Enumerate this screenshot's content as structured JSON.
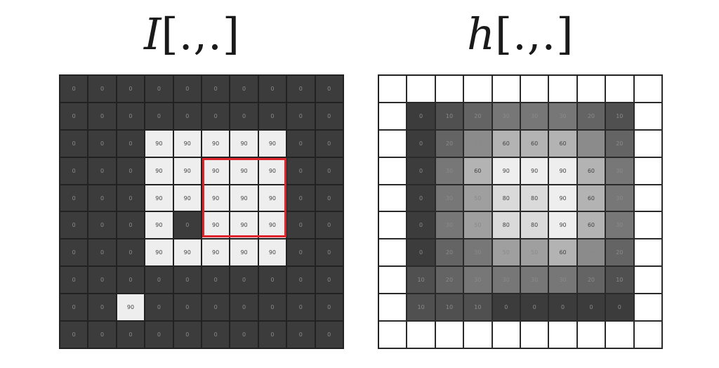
{
  "title_left": {
    "var": "I",
    "brackets": "[.,.]"
  },
  "title_right": {
    "var": "h",
    "brackets": "[.,.]"
  },
  "colors": {
    "dark": "#3c3c3c",
    "white": "#f4f4f4",
    "highlight": "#e0242c"
  },
  "image_I": [
    [
      "0",
      "0",
      "0",
      "0",
      "0",
      "0",
      "0",
      "0",
      "0",
      "0"
    ],
    [
      "0",
      "0",
      "0",
      "0",
      "0",
      "0",
      "0",
      "0",
      "0",
      "0"
    ],
    [
      "0",
      "0",
      "0",
      "90",
      "90",
      "90",
      "90",
      "90",
      "0",
      "0"
    ],
    [
      "0",
      "0",
      "0",
      "90",
      "90",
      "90",
      "90",
      "90",
      "0",
      "0"
    ],
    [
      "0",
      "0",
      "0",
      "90",
      "90",
      "90",
      "90",
      "90",
      "0",
      "0"
    ],
    [
      "0",
      "0",
      "0",
      "90",
      "0",
      "90",
      "90",
      "90",
      "0",
      "0"
    ],
    [
      "0",
      "0",
      "0",
      "90",
      "90",
      "90",
      "90",
      "90",
      "0",
      "0"
    ],
    [
      "0",
      "0",
      "0",
      "0",
      "0",
      "0",
      "0",
      "0",
      "0",
      "0"
    ],
    [
      "0",
      "0",
      "90",
      "0",
      "0",
      "0",
      "0",
      "0",
      "0",
      "0"
    ],
    [
      "0",
      "0",
      "0",
      "0",
      "0",
      "0",
      "0",
      "0",
      "0",
      "0"
    ]
  ],
  "image_h": [
    [
      "",
      "",
      "",
      "",
      "",
      "",
      "",
      "",
      "",
      ""
    ],
    [
      "",
      "0",
      "10",
      "20",
      "30",
      "30",
      "30",
      "20",
      "10",
      ""
    ],
    [
      "",
      "0",
      "20",
      "40",
      "60",
      "60",
      "60",
      "40",
      "20",
      ""
    ],
    [
      "",
      "0",
      "30",
      "60",
      "90",
      "90",
      "90",
      "60",
      "30",
      ""
    ],
    [
      "",
      "0",
      "30",
      "50",
      "80",
      "80",
      "90",
      "60",
      "30",
      ""
    ],
    [
      "",
      "0",
      "30",
      "50",
      "80",
      "80",
      "90",
      "60",
      "30",
      ""
    ],
    [
      "",
      "0",
      "20",
      "30",
      "50",
      "50",
      "60",
      "40",
      "20",
      ""
    ],
    [
      "",
      "10",
      "20",
      "30",
      "30",
      "30",
      "30",
      "20",
      "10",
      ""
    ],
    [
      "",
      "10",
      "10",
      "10",
      "0",
      "0",
      "0",
      "0",
      "0",
      ""
    ],
    [
      "",
      "",
      "",
      "",
      "",
      "",
      "",
      "",
      "",
      ""
    ]
  ]
}
